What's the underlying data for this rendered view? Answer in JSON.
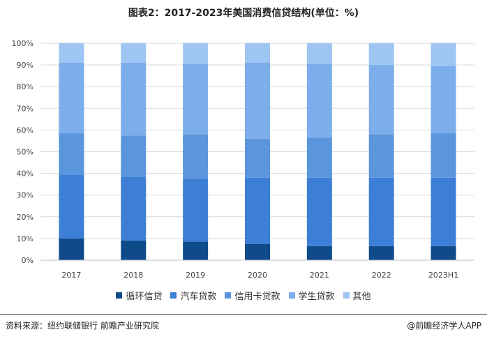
{
  "title": "图表2：2017-2023年美国消费信贷结构(单位：%)",
  "chart_data": {
    "type": "bar",
    "stacked": true,
    "title": "图表2：2017-2023年美国消费信贷结构(单位：%)",
    "categories": [
      "2017",
      "2018",
      "2019",
      "2020",
      "2021",
      "2022",
      "2023H1"
    ],
    "series": [
      {
        "name": "循环信贷",
        "color": "#0f4a8a",
        "values": [
          10,
          9,
          8.5,
          7.5,
          6.5,
          6.5,
          6.5
        ]
      },
      {
        "name": "汽车贷款",
        "color": "#3d7fd6",
        "values": [
          29.5,
          29.5,
          29,
          30.5,
          31.5,
          31.5,
          31.5
        ]
      },
      {
        "name": "信用卡贷款",
        "color": "#5b95dc",
        "values": [
          19,
          19,
          20.5,
          18,
          18.5,
          20,
          20.5
        ]
      },
      {
        "name": "学生贷款",
        "color": "#7baeea",
        "values": [
          32.5,
          33.5,
          32.5,
          35,
          34,
          32,
          31
        ]
      },
      {
        "name": "其他",
        "color": "#9fc5f2",
        "values": [
          9,
          9,
          9.5,
          9,
          9.5,
          10,
          10.5
        ]
      }
    ],
    "ylim": [
      0,
      100
    ],
    "yticks": [
      "0%",
      "10%",
      "20%",
      "30%",
      "40%",
      "50%",
      "60%",
      "70%",
      "80%",
      "90%",
      "100%"
    ],
    "grid": true,
    "legend_position": "bottom"
  },
  "footer": {
    "source": "资料来源：纽约联储银行 前瞻产业研究院",
    "brand": "@前瞻经济学人APP"
  }
}
